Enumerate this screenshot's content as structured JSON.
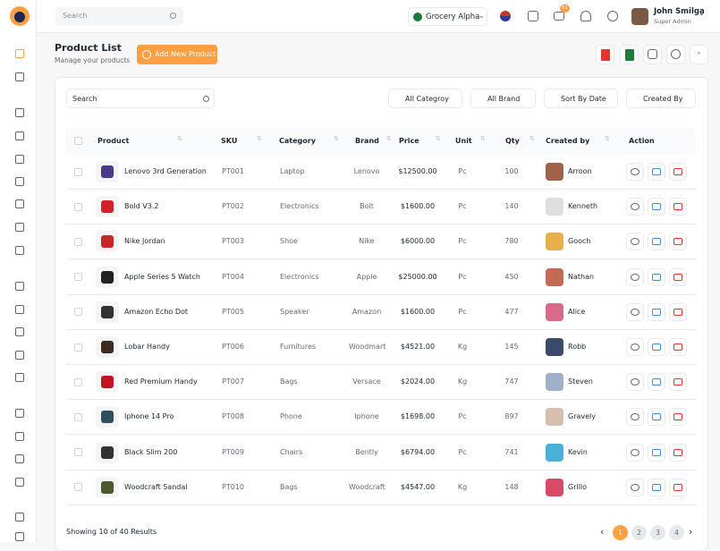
{
  "header": {
    "search_placeholder": "Search",
    "store": "Grocery Alpha",
    "notification_count": "01",
    "user_name": "John Smilga",
    "user_role": "Super Admin"
  },
  "page": {
    "title": "Product List",
    "subtitle": "Manage your products",
    "add_button": "Add New Product"
  },
  "filters": {
    "search_placeholder": "Search",
    "category": "All Categroy",
    "brand": "All Brand",
    "sort": "Sort By Date",
    "created_by": "Created By"
  },
  "table": {
    "columns": [
      "Product",
      "SKU",
      "Category",
      "Brand",
      "Price",
      "Unit",
      "Qty",
      "Created by",
      "Action"
    ],
    "rows": [
      {
        "product": "Lenovo 3rd Generation",
        "sku": "PT001",
        "category": "Laptop",
        "brand": "Lenovo",
        "price": "$12500.00",
        "unit": "Pc",
        "qty": "100",
        "created_by": "Arroon"
      },
      {
        "product": "Bold V3.2",
        "sku": "PT002",
        "category": "Electronics",
        "brand": "Bolt",
        "price": "$1600.00",
        "unit": "Pc",
        "qty": "140",
        "created_by": "Kenneth"
      },
      {
        "product": "Nike Jordan",
        "sku": "PT003",
        "category": "Shoe",
        "brand": "Nike",
        "price": "$6000.00",
        "unit": "Pc",
        "qty": "780",
        "created_by": "Gooch"
      },
      {
        "product": "Apple Series 5 Watch",
        "sku": "PT004",
        "category": "Electronics",
        "brand": "Apple",
        "price": "$25000.00",
        "unit": "Pc",
        "qty": "450",
        "created_by": "Nathan"
      },
      {
        "product": "Amazon Echo Dot",
        "sku": "PT005",
        "category": "Speaker",
        "brand": "Amazon",
        "price": "$1600.00",
        "unit": "Pc",
        "qty": "477",
        "created_by": "Alice"
      },
      {
        "product": "Lobar Handy",
        "sku": "PT006",
        "category": "Furnitures",
        "brand": "Woodmart",
        "price": "$4521.00",
        "unit": "Kg",
        "qty": "145",
        "created_by": "Robb"
      },
      {
        "product": "Red Premium Handy",
        "sku": "PT007",
        "category": "Bags",
        "brand": "Versace",
        "price": "$2024.00",
        "unit": "Kg",
        "qty": "747",
        "created_by": "Steven"
      },
      {
        "product": "Iphone 14 Pro",
        "sku": "PT008",
        "category": "Phone",
        "brand": "Iphone",
        "price": "$1698.00",
        "unit": "Pc",
        "qty": "897",
        "created_by": "Gravely"
      },
      {
        "product": "Black Slim 200",
        "sku": "PT009",
        "category": "Chairs",
        "brand": "Bently",
        "price": "$6794.00",
        "unit": "Pc",
        "qty": "741",
        "created_by": "Kevin"
      },
      {
        "product": "Woodcraft Sandal",
        "sku": "PT010",
        "category": "Bags",
        "brand": "Woodcraft",
        "price": "$4547.00",
        "unit": "Kg",
        "qty": "148",
        "created_by": "Grillo"
      }
    ]
  },
  "footer": {
    "summary": "Showing 10 of 40 Results",
    "pages": [
      "1",
      "2",
      "3",
      "4"
    ]
  }
}
